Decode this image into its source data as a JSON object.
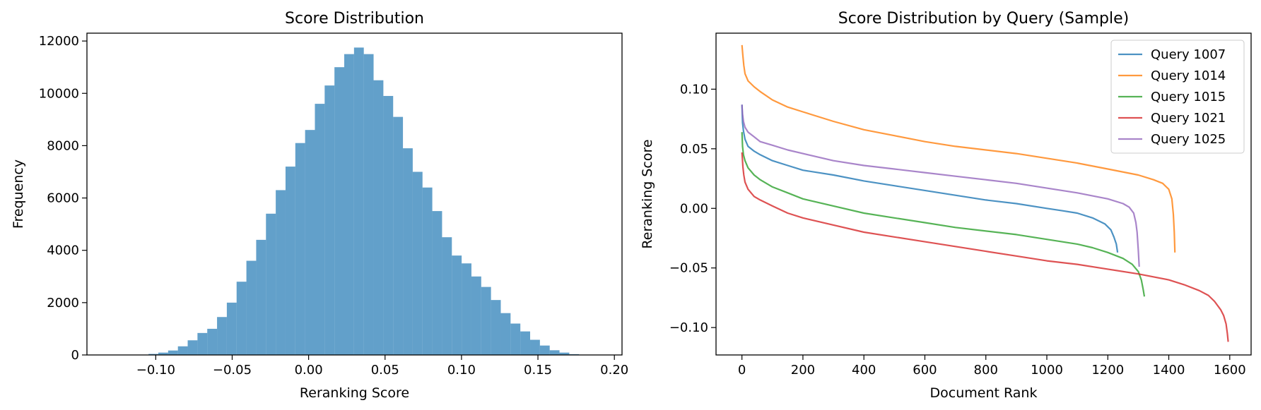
{
  "chart_data": [
    {
      "type": "bar",
      "title": "Score Distribution",
      "xlabel": "Reranking Score",
      "ylabel": "Frequency",
      "xlim": [
        -0.145,
        0.205
      ],
      "ylim": [
        0,
        12300
      ],
      "grid": false,
      "color": "#1f77b4",
      "opacity": 0.7,
      "xticks": [
        -0.1,
        -0.05,
        0.0,
        0.05,
        0.1,
        0.15,
        0.2
      ],
      "xtick_labels": [
        "−0.10",
        "−0.05",
        "0.00",
        "0.05",
        "0.10",
        "0.15",
        "0.20"
      ],
      "yticks": [
        0,
        2000,
        4000,
        6000,
        8000,
        10000,
        12000
      ],
      "ytick_labels": [
        "0",
        "2000",
        "4000",
        "6000",
        "8000",
        "10000",
        "12000"
      ],
      "bin_start": -0.1047,
      "bin_width": 0.0064,
      "values": [
        40,
        90,
        170,
        330,
        560,
        840,
        1000,
        1450,
        2000,
        2800,
        3600,
        4400,
        5400,
        6300,
        7200,
        8100,
        8600,
        9600,
        10300,
        11000,
        11500,
        11750,
        11500,
        10500,
        9900,
        9100,
        7900,
        7000,
        6400,
        5500,
        4500,
        3800,
        3500,
        3000,
        2600,
        2100,
        1600,
        1200,
        900,
        580,
        360,
        180,
        90,
        30,
        10
      ]
    },
    {
      "type": "line",
      "title": "Score Distribution by Query (Sample)",
      "xlabel": "Document Rank",
      "ylabel": "Reranking Score",
      "xlim": [
        -85,
        1670
      ],
      "ylim": [
        -0.123,
        0.147
      ],
      "grid": false,
      "legend_position": "top-right",
      "xticks": [
        0,
        200,
        400,
        600,
        800,
        1000,
        1200,
        1400,
        1600
      ],
      "xtick_labels": [
        "0",
        "200",
        "400",
        "600",
        "800",
        "1000",
        "1200",
        "1400",
        "1600"
      ],
      "yticks": [
        -0.1,
        -0.05,
        0.0,
        0.05,
        0.1
      ],
      "ytick_labels": [
        "−0.10",
        "−0.05",
        "0.00",
        "0.05",
        "0.10"
      ],
      "series": [
        {
          "name": "Query 1007",
          "color": "#1f77b4",
          "points": [
            [
              0,
              0.087
            ],
            [
              2,
              0.072
            ],
            [
              5,
              0.065
            ],
            [
              10,
              0.058
            ],
            [
              20,
              0.052
            ],
            [
              40,
              0.048
            ],
            [
              60,
              0.045
            ],
            [
              100,
              0.04
            ],
            [
              150,
              0.036
            ],
            [
              200,
              0.032
            ],
            [
              300,
              0.028
            ],
            [
              400,
              0.023
            ],
            [
              500,
              0.019
            ],
            [
              600,
              0.015
            ],
            [
              700,
              0.011
            ],
            [
              800,
              0.007
            ],
            [
              900,
              0.004
            ],
            [
              1000,
              0.0
            ],
            [
              1050,
              -0.002
            ],
            [
              1100,
              -0.004
            ],
            [
              1150,
              -0.008
            ],
            [
              1190,
              -0.013
            ],
            [
              1210,
              -0.018
            ],
            [
              1220,
              -0.024
            ],
            [
              1228,
              -0.03
            ],
            [
              1232,
              -0.037
            ]
          ]
        },
        {
          "name": "Query 1014",
          "color": "#ff7f0e",
          "points": [
            [
              0,
              0.137
            ],
            [
              3,
              0.128
            ],
            [
              6,
              0.12
            ],
            [
              10,
              0.113
            ],
            [
              20,
              0.107
            ],
            [
              40,
              0.102
            ],
            [
              60,
              0.098
            ],
            [
              100,
              0.091
            ],
            [
              150,
              0.085
            ],
            [
              200,
              0.081
            ],
            [
              300,
              0.073
            ],
            [
              400,
              0.066
            ],
            [
              500,
              0.061
            ],
            [
              600,
              0.056
            ],
            [
              700,
              0.052
            ],
            [
              800,
              0.049
            ],
            [
              900,
              0.046
            ],
            [
              1000,
              0.042
            ],
            [
              1100,
              0.038
            ],
            [
              1200,
              0.033
            ],
            [
              1300,
              0.028
            ],
            [
              1350,
              0.024
            ],
            [
              1380,
              0.021
            ],
            [
              1400,
              0.016
            ],
            [
              1410,
              0.008
            ],
            [
              1415,
              -0.005
            ],
            [
              1418,
              -0.02
            ],
            [
              1420,
              -0.037
            ]
          ]
        },
        {
          "name": "Query 1015",
          "color": "#2ca02c",
          "points": [
            [
              0,
              0.064
            ],
            [
              2,
              0.052
            ],
            [
              5,
              0.045
            ],
            [
              10,
              0.04
            ],
            [
              20,
              0.034
            ],
            [
              40,
              0.028
            ],
            [
              60,
              0.024
            ],
            [
              100,
              0.018
            ],
            [
              150,
              0.013
            ],
            [
              200,
              0.008
            ],
            [
              300,
              0.002
            ],
            [
              400,
              -0.004
            ],
            [
              500,
              -0.008
            ],
            [
              600,
              -0.012
            ],
            [
              700,
              -0.016
            ],
            [
              800,
              -0.019
            ],
            [
              900,
              -0.022
            ],
            [
              1000,
              -0.026
            ],
            [
              1100,
              -0.03
            ],
            [
              1150,
              -0.033
            ],
            [
              1200,
              -0.037
            ],
            [
              1250,
              -0.042
            ],
            [
              1280,
              -0.047
            ],
            [
              1300,
              -0.053
            ],
            [
              1310,
              -0.06
            ],
            [
              1316,
              -0.068
            ],
            [
              1320,
              -0.074
            ]
          ]
        },
        {
          "name": "Query 1021",
          "color": "#d62728",
          "points": [
            [
              0,
              0.047
            ],
            [
              3,
              0.035
            ],
            [
              6,
              0.028
            ],
            [
              10,
              0.022
            ],
            [
              20,
              0.016
            ],
            [
              40,
              0.01
            ],
            [
              60,
              0.007
            ],
            [
              100,
              0.002
            ],
            [
              150,
              -0.004
            ],
            [
              200,
              -0.008
            ],
            [
              300,
              -0.014
            ],
            [
              400,
              -0.02
            ],
            [
              500,
              -0.024
            ],
            [
              600,
              -0.028
            ],
            [
              700,
              -0.032
            ],
            [
              800,
              -0.036
            ],
            [
              900,
              -0.04
            ],
            [
              1000,
              -0.044
            ],
            [
              1100,
              -0.047
            ],
            [
              1200,
              -0.051
            ],
            [
              1300,
              -0.055
            ],
            [
              1400,
              -0.06
            ],
            [
              1450,
              -0.064
            ],
            [
              1500,
              -0.069
            ],
            [
              1530,
              -0.073
            ],
            [
              1550,
              -0.078
            ],
            [
              1570,
              -0.085
            ],
            [
              1580,
              -0.09
            ],
            [
              1588,
              -0.097
            ],
            [
              1592,
              -0.105
            ],
            [
              1595,
              -0.112
            ]
          ]
        },
        {
          "name": "Query 1025",
          "color": "#9467bd",
          "points": [
            [
              0,
              0.087
            ],
            [
              2,
              0.079
            ],
            [
              5,
              0.073
            ],
            [
              10,
              0.068
            ],
            [
              20,
              0.064
            ],
            [
              40,
              0.06
            ],
            [
              60,
              0.056
            ],
            [
              100,
              0.053
            ],
            [
              150,
              0.049
            ],
            [
              200,
              0.046
            ],
            [
              300,
              0.04
            ],
            [
              400,
              0.036
            ],
            [
              500,
              0.033
            ],
            [
              600,
              0.03
            ],
            [
              700,
              0.027
            ],
            [
              800,
              0.024
            ],
            [
              900,
              0.021
            ],
            [
              1000,
              0.017
            ],
            [
              1100,
              0.013
            ],
            [
              1200,
              0.008
            ],
            [
              1250,
              0.004
            ],
            [
              1270,
              0.001
            ],
            [
              1285,
              -0.004
            ],
            [
              1292,
              -0.012
            ],
            [
              1296,
              -0.02
            ],
            [
              1300,
              -0.035
            ],
            [
              1303,
              -0.049
            ]
          ]
        }
      ]
    }
  ]
}
